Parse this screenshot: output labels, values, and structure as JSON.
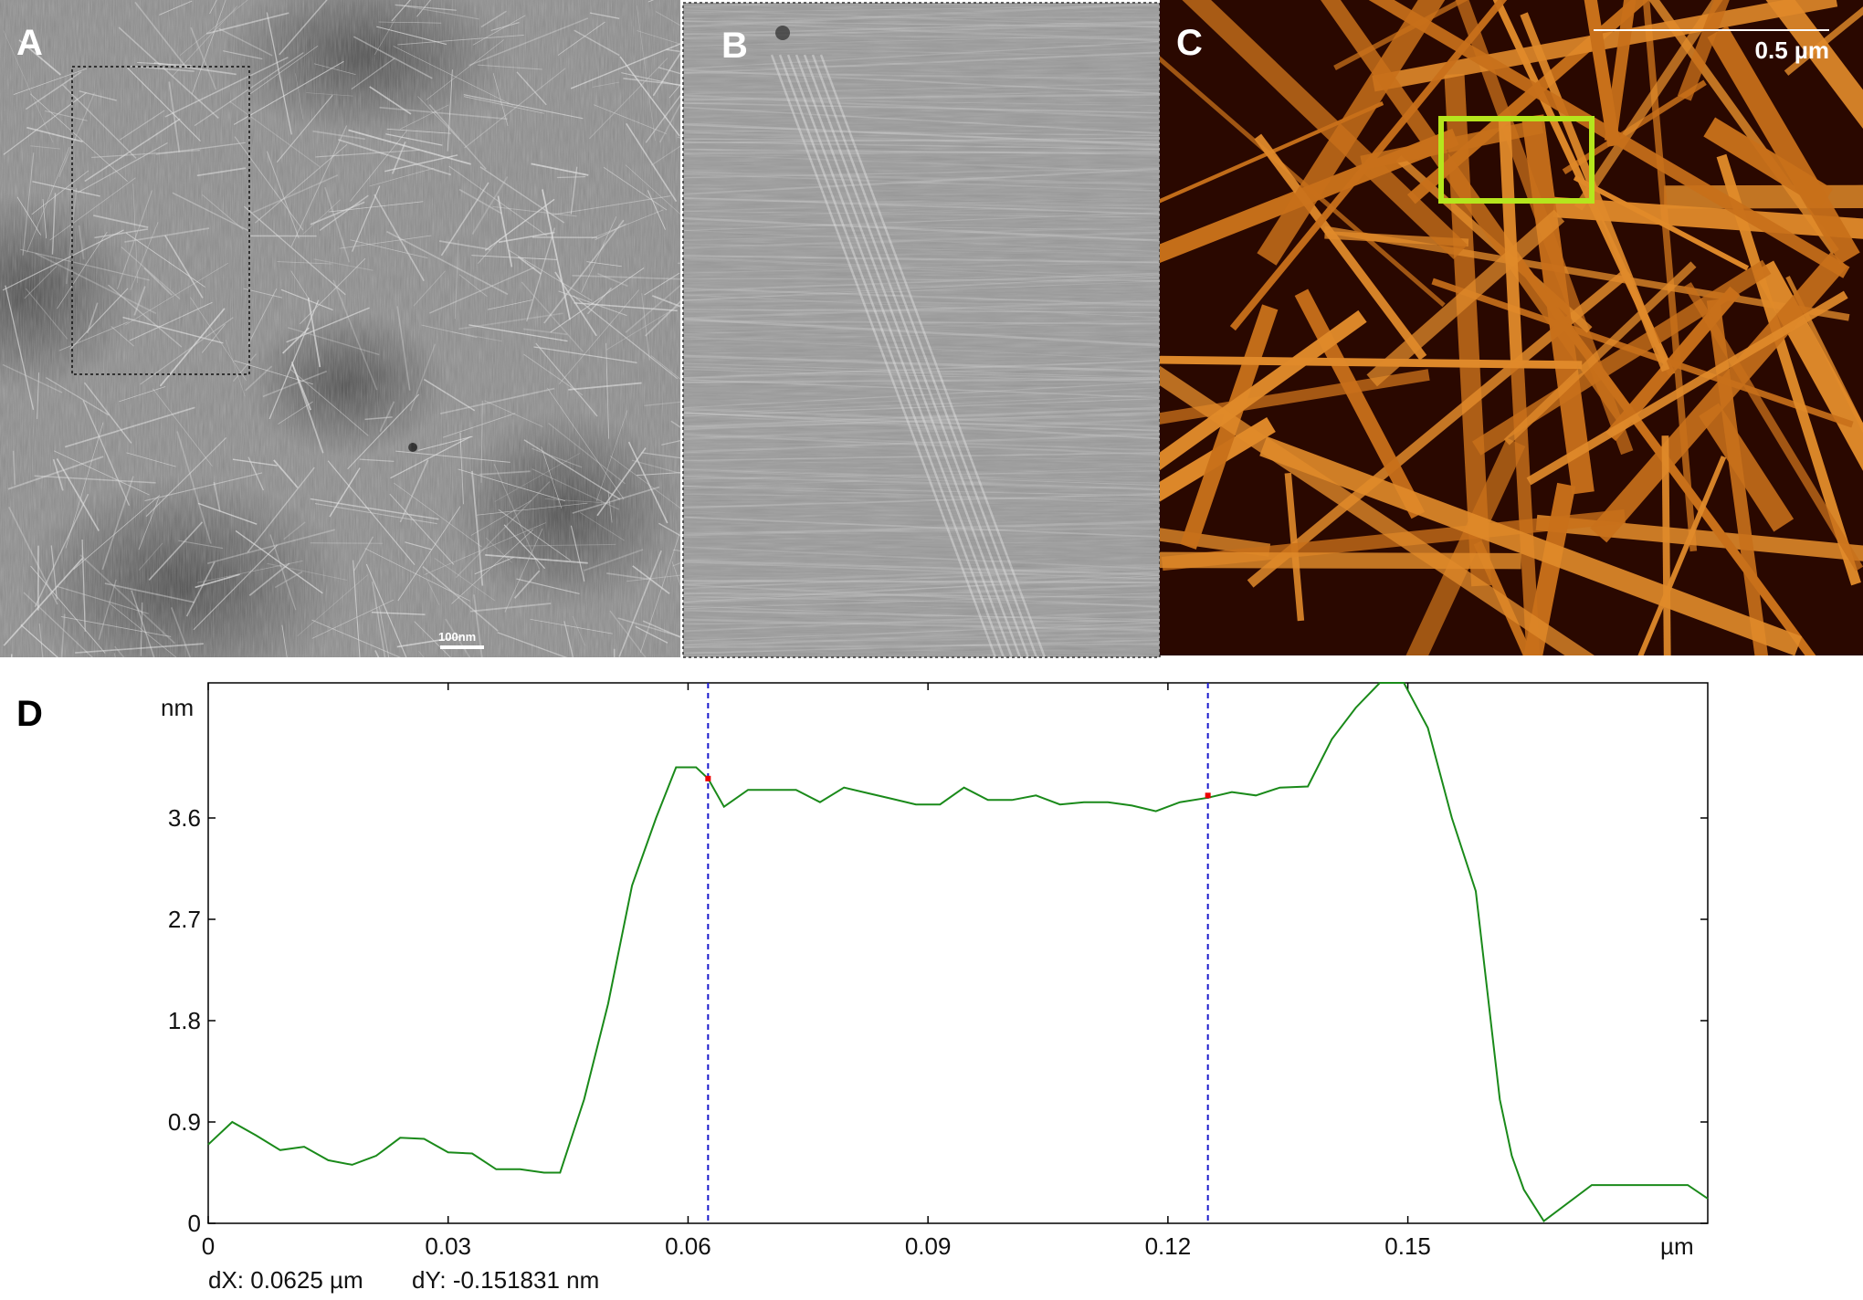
{
  "panels": {
    "a": {
      "letter": "A",
      "scale_bar_label": "100nm"
    },
    "b": {
      "letter": "B"
    },
    "c": {
      "letter": "C",
      "scale_bar_label": "0.5 µm",
      "highlight_color": "#b5e61d"
    },
    "d": {
      "letter": "D"
    }
  },
  "colors": {
    "profile_line": "#1a8a1a",
    "cursor_line": "#1a1acc",
    "cursor_marker": "#ee0000",
    "afm_background": "#2a0800",
    "afm_fibril": "#c8701a"
  },
  "chart_data": {
    "type": "line",
    "title": "",
    "xlabel": "",
    "ylabel": "",
    "x_unit_label": "µm",
    "y_unit_label": "nm",
    "xlim": [
      0,
      0.1875
    ],
    "ylim": [
      0,
      4.8
    ],
    "x_ticks": [
      {
        "value": 0,
        "label": "0"
      },
      {
        "value": 0.03,
        "label": "0.03"
      },
      {
        "value": 0.06,
        "label": "0.06"
      },
      {
        "value": 0.09,
        "label": "0.09"
      },
      {
        "value": 0.12,
        "label": "0.12"
      },
      {
        "value": 0.15,
        "label": "0.15"
      }
    ],
    "y_ticks": [
      {
        "value": 0,
        "label": "0"
      },
      {
        "value": 0.9,
        "label": "0.9"
      },
      {
        "value": 1.8,
        "label": "1.8"
      },
      {
        "value": 2.7,
        "label": "2.7"
      },
      {
        "value": 3.6,
        "label": "3.6"
      }
    ],
    "series": [
      {
        "x": [
          0,
          0.003,
          0.006,
          0.009,
          0.012,
          0.015,
          0.018,
          0.021,
          0.024,
          0.027,
          0.03,
          0.033,
          0.036,
          0.039,
          0.042,
          0.044,
          0.047,
          0.05,
          0.053,
          0.056,
          0.0585,
          0.061,
          0.0625,
          0.0645,
          0.0675,
          0.0705,
          0.0735,
          0.0765,
          0.0795,
          0.0825,
          0.0855,
          0.0885,
          0.0915,
          0.0945,
          0.0975,
          0.1005,
          0.1035,
          0.1065,
          0.1095,
          0.1125,
          0.1155,
          0.1185,
          0.1215,
          0.125,
          0.128,
          0.131,
          0.134,
          0.1375,
          0.1405,
          0.1435,
          0.1465,
          0.1495,
          0.1525,
          0.1555,
          0.1585,
          0.1615,
          0.163,
          0.1645,
          0.167,
          0.173,
          0.179,
          0.185,
          0.1875
        ],
        "y": [
          0.7,
          0.9,
          0.78,
          0.65,
          0.68,
          0.56,
          0.52,
          0.6,
          0.76,
          0.75,
          0.63,
          0.62,
          0.48,
          0.48,
          0.45,
          0.45,
          1.1,
          1.95,
          3.0,
          3.6,
          4.05,
          4.05,
          3.95,
          3.7,
          3.85,
          3.85,
          3.85,
          3.74,
          3.87,
          3.82,
          3.77,
          3.72,
          3.72,
          3.87,
          3.76,
          3.76,
          3.8,
          3.72,
          3.74,
          3.74,
          3.71,
          3.66,
          3.74,
          3.78,
          3.83,
          3.8,
          3.87,
          3.88,
          4.3,
          4.58,
          4.8,
          4.8,
          4.4,
          3.6,
          2.95,
          1.1,
          0.6,
          0.3,
          0.02,
          0.34,
          0.34,
          0.34,
          0.22
        ]
      }
    ],
    "cursors": [
      {
        "x": 0.0625,
        "y": 3.95
      },
      {
        "x": 0.125,
        "y": 3.8
      }
    ],
    "readout": {
      "dx": "dX: 0.0625 µm",
      "dy": "dY: -0.151831 nm"
    },
    "grid": false
  }
}
